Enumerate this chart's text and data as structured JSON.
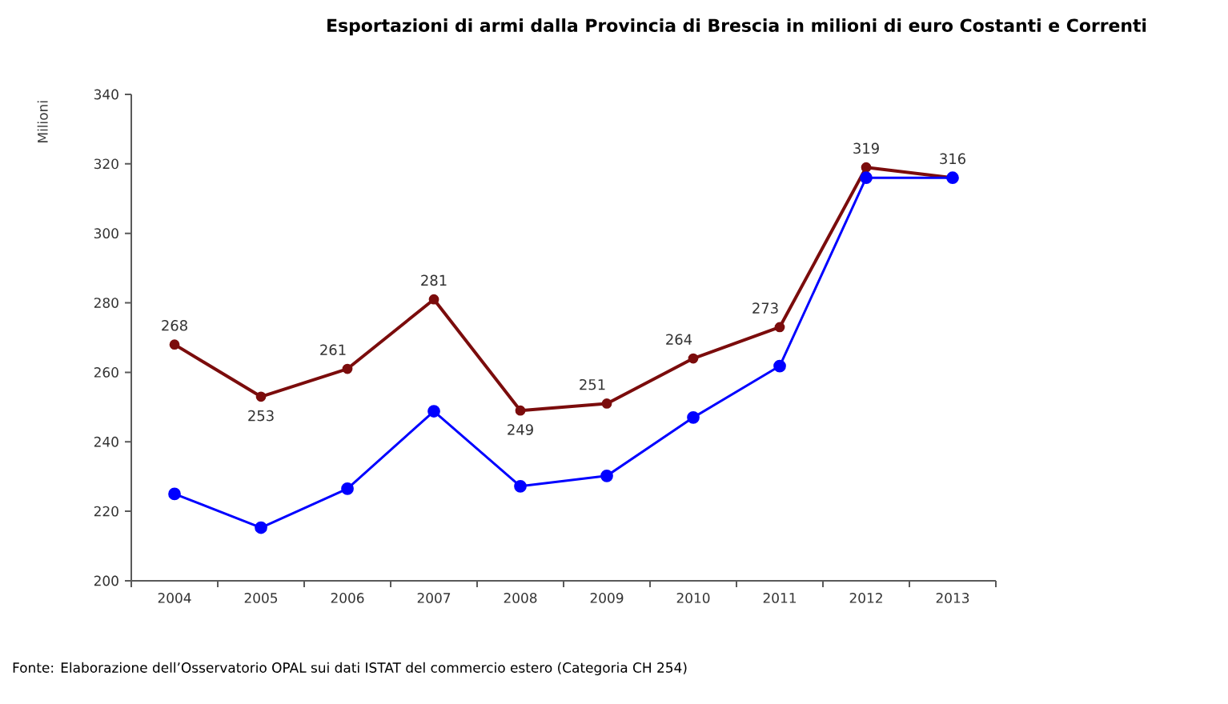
{
  "chart_data": {
    "type": "line",
    "title": "Esportazioni di armi dalla Provincia di Brescia in milioni di euro Costanti e Correnti",
    "ylabel": "Milioni",
    "categories": [
      "2004",
      "2005",
      "2006",
      "2007",
      "2008",
      "2009",
      "2010",
      "2011",
      "2012",
      "2013"
    ],
    "series": [
      {
        "color": "#7b0c0c",
        "values": [
          268,
          253,
          261,
          281,
          249,
          251,
          264,
          273,
          319,
          316
        ],
        "value_labels": [
          "268",
          "253",
          "261",
          "281",
          "249",
          "251",
          "264",
          "273",
          "319",
          "316"
        ]
      },
      {
        "color": "#0000ff",
        "values": [
          225,
          215.3,
          226.5,
          248.8,
          227.2,
          230.2,
          247,
          261.8,
          316,
          316
        ]
      }
    ],
    "ylim": [
      200,
      340
    ],
    "yticks": [
      200,
      220,
      240,
      260,
      280,
      300,
      320,
      340
    ],
    "marker": "circle",
    "line_style": "solid",
    "grid": false,
    "annotations": [
      "Fonte: Elaborazione dell’Osservatorio OPAL sui dati ISTAT del commercio estero (Categoria CH 254)"
    ]
  }
}
